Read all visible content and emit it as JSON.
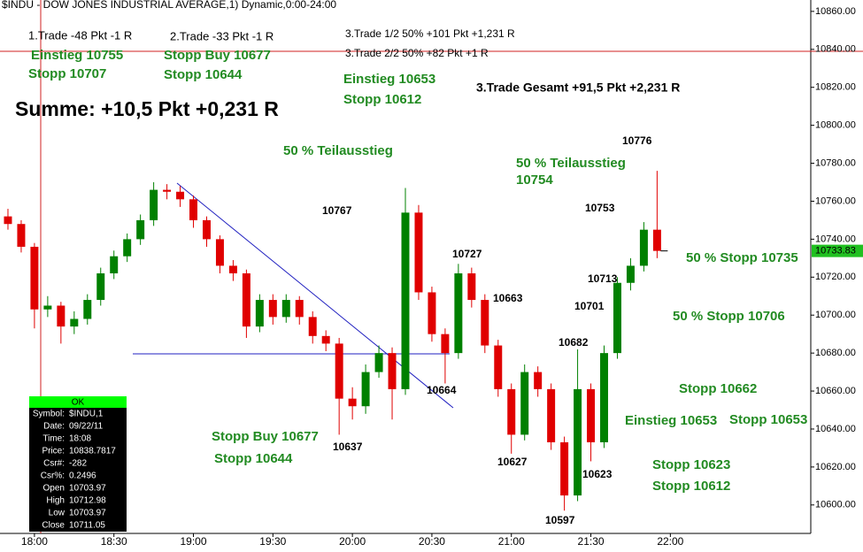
{
  "chart_data": {
    "type": "candlestick",
    "title": "$INDU - DOW JONES INDUSTRIAL AVERAGE,1) Dynamic,0:00-24:00",
    "x": [
      "17:50",
      "17:55",
      "18:00",
      "18:05",
      "18:10",
      "18:15",
      "18:20",
      "18:25",
      "18:30",
      "18:35",
      "18:40",
      "18:45",
      "18:50",
      "18:55",
      "19:00",
      "19:05",
      "19:10",
      "19:15",
      "19:20",
      "19:25",
      "19:30",
      "19:35",
      "19:40",
      "19:45",
      "19:50",
      "19:55",
      "20:00",
      "20:05",
      "20:10",
      "20:15",
      "20:20",
      "20:25",
      "20:30",
      "20:35",
      "20:40",
      "20:45",
      "20:50",
      "20:55",
      "21:00",
      "21:05",
      "21:10",
      "21:15",
      "21:20",
      "21:25",
      "21:30",
      "21:35",
      "21:40",
      "21:45",
      "21:50",
      "21:55"
    ],
    "open": [
      10752,
      10748,
      10736,
      10703,
      10705,
      10694,
      10698,
      10708,
      10722,
      10731,
      10740,
      10750,
      10766,
      10765,
      10761,
      10750,
      10740,
      10726,
      10722,
      10694,
      10708,
      10699,
      10708,
      10699,
      10689,
      10685,
      10656,
      10652,
      10670,
      10680,
      10661,
      10754,
      10712,
      10690,
      10680,
      10722,
      10708,
      10684,
      10661,
      10637,
      10670,
      10661,
      10633,
      10605,
      10661,
      10633,
      10680,
      10717,
      10726,
      10745
    ],
    "high": [
      10756,
      10750,
      10738,
      10710,
      10707,
      10702,
      10711,
      10725,
      10734,
      10743,
      10753,
      10770,
      10769,
      10768,
      10763,
      10752,
      10742,
      10729,
      10724,
      10711,
      10711,
      10711,
      10710,
      10702,
      10692,
      10688,
      10662,
      10674,
      10684,
      10683,
      10767,
      10758,
      10715,
      10693,
      10727,
      10725,
      10711,
      10687,
      10664,
      10674,
      10673,
      10664,
      10636,
      10682,
      10664,
      10684,
      10720,
      10730,
      10749,
      10776
    ],
    "low": [
      10745,
      10733,
      10693,
      10699,
      10685,
      10690,
      10695,
      10705,
      10719,
      10728,
      10737,
      10747,
      10761,
      10757,
      10746,
      10736,
      10722,
      10718,
      10688,
      10691,
      10695,
      10696,
      10695,
      10685,
      10681,
      10637,
      10645,
      10648,
      10667,
      10645,
      10658,
      10708,
      10686,
      10664,
      10677,
      10704,
      10680,
      10657,
      10627,
      10634,
      10657,
      10629,
      10597,
      10602,
      10623,
      10630,
      10677,
      10713,
      10723,
      10730
    ],
    "close": [
      10748,
      10736,
      10703,
      10705,
      10694,
      10698,
      10708,
      10722,
      10731,
      10740,
      10750,
      10766,
      10765,
      10761,
      10750,
      10740,
      10726,
      10722,
      10694,
      10708,
      10699,
      10708,
      10699,
      10689,
      10685,
      10656,
      10652,
      10670,
      10680,
      10661,
      10754,
      10712,
      10690,
      10680,
      10722,
      10708,
      10684,
      10661,
      10637,
      10670,
      10661,
      10633,
      10605,
      10661,
      10633,
      10680,
      10717,
      10726,
      10745,
      10733.83
    ],
    "up_color": "#008000",
    "down_color": "#e00000",
    "xlim": [
      "17:47",
      "22:53"
    ],
    "xticks": [
      "18:00",
      "18:30",
      "19:00",
      "19:30",
      "20:00",
      "20:30",
      "21:00",
      "21:30",
      "22:00"
    ],
    "ylim": [
      10585,
      10866
    ],
    "yticks": [
      {
        "value": 10600,
        "label": "10600.00"
      },
      {
        "value": 10620,
        "label": "10620.00"
      },
      {
        "value": 10640,
        "label": "10640.00"
      },
      {
        "value": 10660,
        "label": "10660.00"
      },
      {
        "value": 10680,
        "label": "10680.00"
      },
      {
        "value": 10700,
        "label": "10700.00"
      },
      {
        "value": 10720,
        "label": "10720.00"
      },
      {
        "value": 10740,
        "label": "10740.00"
      },
      {
        "value": 10760,
        "label": "10760.00"
      },
      {
        "value": 10780,
        "label": "10780.00"
      },
      {
        "value": 10800,
        "label": "10800.00"
      },
      {
        "value": 10820,
        "label": "10820.00"
      },
      {
        "value": 10840,
        "label": "10840.00"
      },
      {
        "value": 10860,
        "label": "10860.00"
      }
    ]
  },
  "annotations": [
    {
      "text": "1.Trade -48 Pkt -1 R",
      "color": "#000000"
    },
    {
      "text": "2.Trade -33 Pkt -1 R",
      "color": "#000000"
    },
    {
      "text": "3.Trade 1/2 50% +101 Pkt +1,231 R",
      "color": "#000000"
    },
    {
      "text": "3.Trade 2/2 50% +82 Pkt +1 R",
      "color": "#000000"
    },
    {
      "text": "Einstieg 10755",
      "color": "#228b22"
    },
    {
      "text": "Stopp 10707",
      "color": "#228b22"
    },
    {
      "text": "Stopp Buy 10677",
      "color": "#228b22"
    },
    {
      "text": "Stopp 10644",
      "color": "#228b22"
    },
    {
      "text": "Einstieg 10653",
      "color": "#228b22"
    },
    {
      "text": "Stopp 10612",
      "color": "#228b22"
    },
    {
      "text": "3.Trade Gesamt +91,5 Pkt +2,231 R",
      "color": "#000000"
    },
    {
      "text": "Summe: +10,5 Pkt +0,231 R",
      "color": "#000000"
    },
    {
      "text": "50 % Teilausstieg",
      "color": "#228b22"
    },
    {
      "text": "50 % Teilausstieg",
      "color": "#228b22"
    },
    {
      "text": "10754",
      "color": "#228b22"
    },
    {
      "text": "10776",
      "color": "#000000"
    },
    {
      "text": "10767",
      "color": "#000000"
    },
    {
      "text": "10753",
      "color": "#000000"
    },
    {
      "text": "10727",
      "color": "#000000"
    },
    {
      "text": "50 % Stopp 10735",
      "color": "#228b22"
    },
    {
      "text": "10713",
      "color": "#000000"
    },
    {
      "text": "10663",
      "color": "#000000"
    },
    {
      "text": "10701",
      "color": "#000000"
    },
    {
      "text": "50 % Stopp 10706",
      "color": "#228b22"
    },
    {
      "text": "10682",
      "color": "#000000"
    },
    {
      "text": "10664",
      "color": "#000000"
    },
    {
      "text": "Stopp 10662",
      "color": "#228b22"
    },
    {
      "text": "Einstieg 10653",
      "color": "#228b22"
    },
    {
      "text": "Stopp 10653",
      "color": "#228b22"
    },
    {
      "text": "Stopp Buy 10677",
      "color": "#228b22"
    },
    {
      "text": "Stopp 10644",
      "color": "#228b22"
    },
    {
      "text": "10637",
      "color": "#000000"
    },
    {
      "text": "10627",
      "color": "#000000"
    },
    {
      "text": "Stopp 10623",
      "color": "#228b22"
    },
    {
      "text": "10623",
      "color": "#000000"
    },
    {
      "text": "Stopp 10612",
      "color": "#228b22"
    },
    {
      "text": "10597",
      "color": "#000000"
    }
  ],
  "info_box": {
    "header": "OK",
    "rows": [
      [
        "Symbol:",
        "$INDU,1"
      ],
      [
        "Date:",
        "09/22/11"
      ],
      [
        "Time:",
        "18:08"
      ],
      [
        "Price:",
        "10838.7817"
      ],
      [
        "Csr#:",
        "-282"
      ],
      [
        "Csr%:",
        "0.2496"
      ],
      [
        "Open",
        "10703.97"
      ],
      [
        "High",
        "10712.98"
      ],
      [
        "Low",
        "10703.97"
      ],
      [
        "Close",
        "10711.05"
      ]
    ]
  }
}
